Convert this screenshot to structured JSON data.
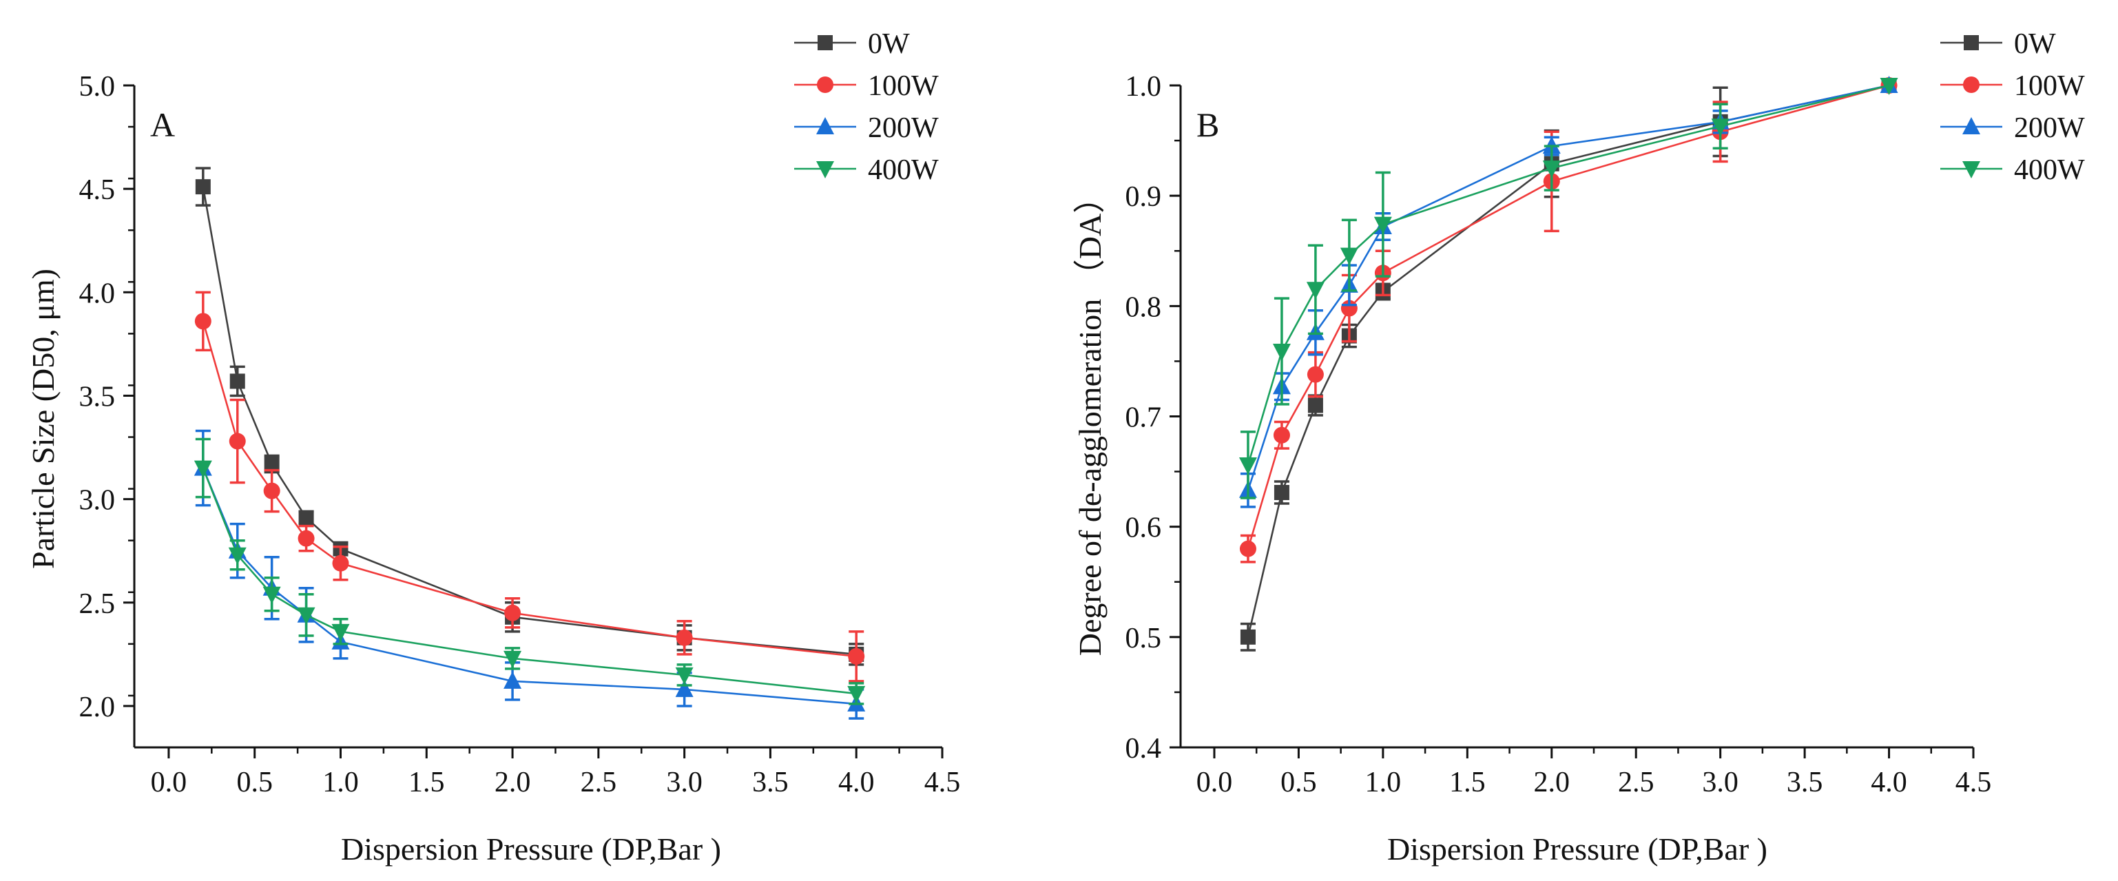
{
  "chart_data": [
    {
      "panel_label": "A",
      "type": "line",
      "xlabel": "Dispersion Pressure (DP,Bar )",
      "ylabel": "Particle Size (D50, μm)",
      "xlim": [
        -0.2,
        4.5
      ],
      "ylim": [
        1.8,
        5.0
      ],
      "xticks": [
        0.0,
        0.5,
        1.0,
        1.5,
        2.0,
        2.5,
        3.0,
        3.5,
        4.0,
        4.5
      ],
      "xtick_labels": [
        "0.0",
        "0.5",
        "1.0",
        "1.5",
        "2.0",
        "2.5",
        "3.0",
        "3.5",
        "4.0",
        "4.5"
      ],
      "yticks": [
        2.0,
        2.5,
        3.0,
        3.5,
        4.0,
        4.5,
        5.0
      ],
      "ytick_labels": [
        "2.0",
        "2.5",
        "3.0",
        "3.5",
        "4.0",
        "4.5",
        "5.0"
      ],
      "yminor_step": 0.25,
      "legend_location": "top-right outside",
      "x": [
        0.2,
        0.4,
        0.6,
        0.8,
        1.0,
        2.0,
        3.0,
        4.0
      ],
      "series": [
        {
          "name": "0W",
          "color": "#3f3f3f",
          "marker": "square",
          "values": [
            4.51,
            3.57,
            3.17,
            2.91,
            2.76,
            2.43,
            2.33,
            2.25
          ],
          "errors": [
            0.09,
            0.07,
            0.04,
            0.03,
            0.03,
            0.07,
            0.06,
            0.05
          ]
        },
        {
          "name": "100W",
          "color": "#f03b3b",
          "marker": "circle",
          "values": [
            3.86,
            3.28,
            3.04,
            2.81,
            2.69,
            2.45,
            2.33,
            2.24
          ],
          "errors": [
            0.14,
            0.2,
            0.1,
            0.06,
            0.08,
            0.07,
            0.08,
            0.12
          ]
        },
        {
          "name": "200W",
          "color": "#1a6fd6",
          "marker": "triangle-up",
          "values": [
            3.15,
            2.75,
            2.57,
            2.44,
            2.31,
            2.12,
            2.08,
            2.01
          ],
          "errors": [
            0.18,
            0.13,
            0.15,
            0.13,
            0.08,
            0.09,
            0.08,
            0.07
          ]
        },
        {
          "name": "400W",
          "color": "#1aa15e",
          "marker": "triangle-down",
          "values": [
            3.15,
            2.73,
            2.54,
            2.44,
            2.36,
            2.23,
            2.15,
            2.06
          ],
          "errors": [
            0.14,
            0.07,
            0.08,
            0.1,
            0.06,
            0.05,
            0.05,
            0.05
          ]
        }
      ]
    },
    {
      "panel_label": "B",
      "type": "line",
      "xlabel": "Dispersion Pressure (DP,Bar )",
      "ylabel": "Degree of de-agglomeration （DA）",
      "xlim": [
        -0.2,
        4.5
      ],
      "ylim": [
        0.4,
        1.0
      ],
      "xticks": [
        0.0,
        0.5,
        1.0,
        1.5,
        2.0,
        2.5,
        3.0,
        3.5,
        4.0,
        4.5
      ],
      "xtick_labels": [
        "0.0",
        "0.5",
        "1.0",
        "1.5",
        "2.0",
        "2.5",
        "3.0",
        "3.5",
        "4.0",
        "4.5"
      ],
      "yticks": [
        0.4,
        0.5,
        0.6,
        0.7,
        0.8,
        0.9,
        1.0
      ],
      "ytick_labels": [
        "0.4",
        "0.5",
        "0.6",
        "0.7",
        "0.8",
        "0.9",
        "1.0"
      ],
      "yminor_step": 0.05,
      "legend_location": "top-right outside",
      "x": [
        0.2,
        0.4,
        0.6,
        0.8,
        1.0,
        2.0,
        3.0,
        4.0
      ],
      "series": [
        {
          "name": "0W",
          "color": "#3f3f3f",
          "marker": "square",
          "values": [
            0.5,
            0.631,
            0.71,
            0.773,
            0.813,
            0.929,
            0.967,
            1.0
          ],
          "errors": [
            0.012,
            0.01,
            0.009,
            0.01,
            0.007,
            0.03,
            0.031,
            0.0
          ]
        },
        {
          "name": "100W",
          "color": "#f03b3b",
          "marker": "circle",
          "values": [
            0.58,
            0.683,
            0.738,
            0.798,
            0.83,
            0.913,
            0.958,
            1.0
          ],
          "errors": [
            0.012,
            0.012,
            0.02,
            0.03,
            0.02,
            0.045,
            0.027,
            0.0
          ]
        },
        {
          "name": "200W",
          "color": "#1a6fd6",
          "marker": "triangle-up",
          "values": [
            0.633,
            0.727,
            0.776,
            0.819,
            0.872,
            0.945,
            0.967,
            1.0
          ],
          "errors": [
            0.015,
            0.012,
            0.02,
            0.018,
            0.012,
            0.008,
            0.01,
            0.0
          ]
        },
        {
          "name": "400W",
          "color": "#1aa15e",
          "marker": "triangle-down",
          "values": [
            0.656,
            0.759,
            0.815,
            0.846,
            0.874,
            0.925,
            0.963,
            1.0
          ],
          "errors": [
            0.03,
            0.048,
            0.04,
            0.032,
            0.047,
            0.02,
            0.02,
            0.0
          ]
        }
      ]
    }
  ]
}
